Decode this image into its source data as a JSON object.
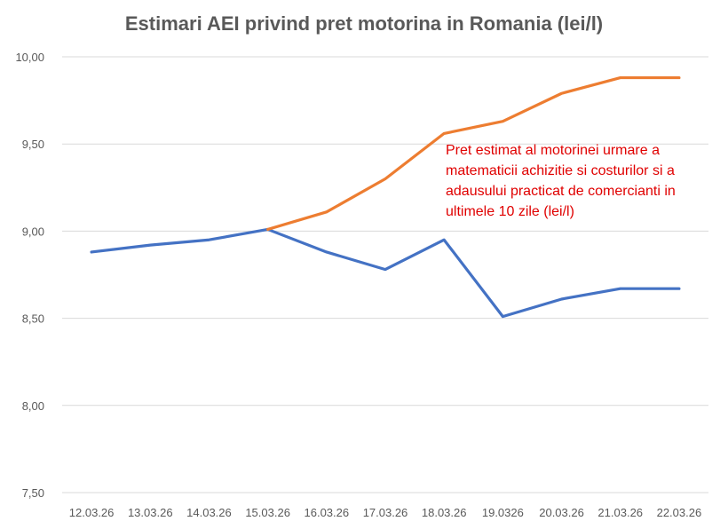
{
  "chart_data": {
    "type": "line",
    "title": "Estimari AEI privind pret motorina in Romania (lei/l)",
    "xlabel": "",
    "ylabel": "",
    "categories": [
      "12.03.26",
      "13.03.26",
      "14.03.26",
      "15.03.26",
      "16.03.26",
      "17.03.26",
      "18.03.26",
      "19.0326",
      "20.03.26",
      "21.03.26",
      "22.03.26"
    ],
    "ylim": [
      7.5,
      10.0
    ],
    "yticks": [
      "7,50",
      "8,00",
      "8,50",
      "9,00",
      "9,50",
      "10,00"
    ],
    "grid": true,
    "series": [
      {
        "color": "#4472c4",
        "values": [
          8.88,
          8.92,
          8.95,
          9.01,
          8.88,
          8.78,
          8.95,
          8.51,
          8.61,
          8.67,
          8.67
        ]
      },
      {
        "color": "#ed7d31",
        "values": [
          null,
          null,
          null,
          9.01,
          9.11,
          9.3,
          9.56,
          9.63,
          9.79,
          9.88,
          9.88
        ]
      }
    ],
    "annotation": "Pret estimat al motorinei urmare a matematicii achizitie si costurilor si a adausului practicat de comercianti in ultimele 10 zile (lei/l)",
    "annotation_color": "#e00000"
  }
}
